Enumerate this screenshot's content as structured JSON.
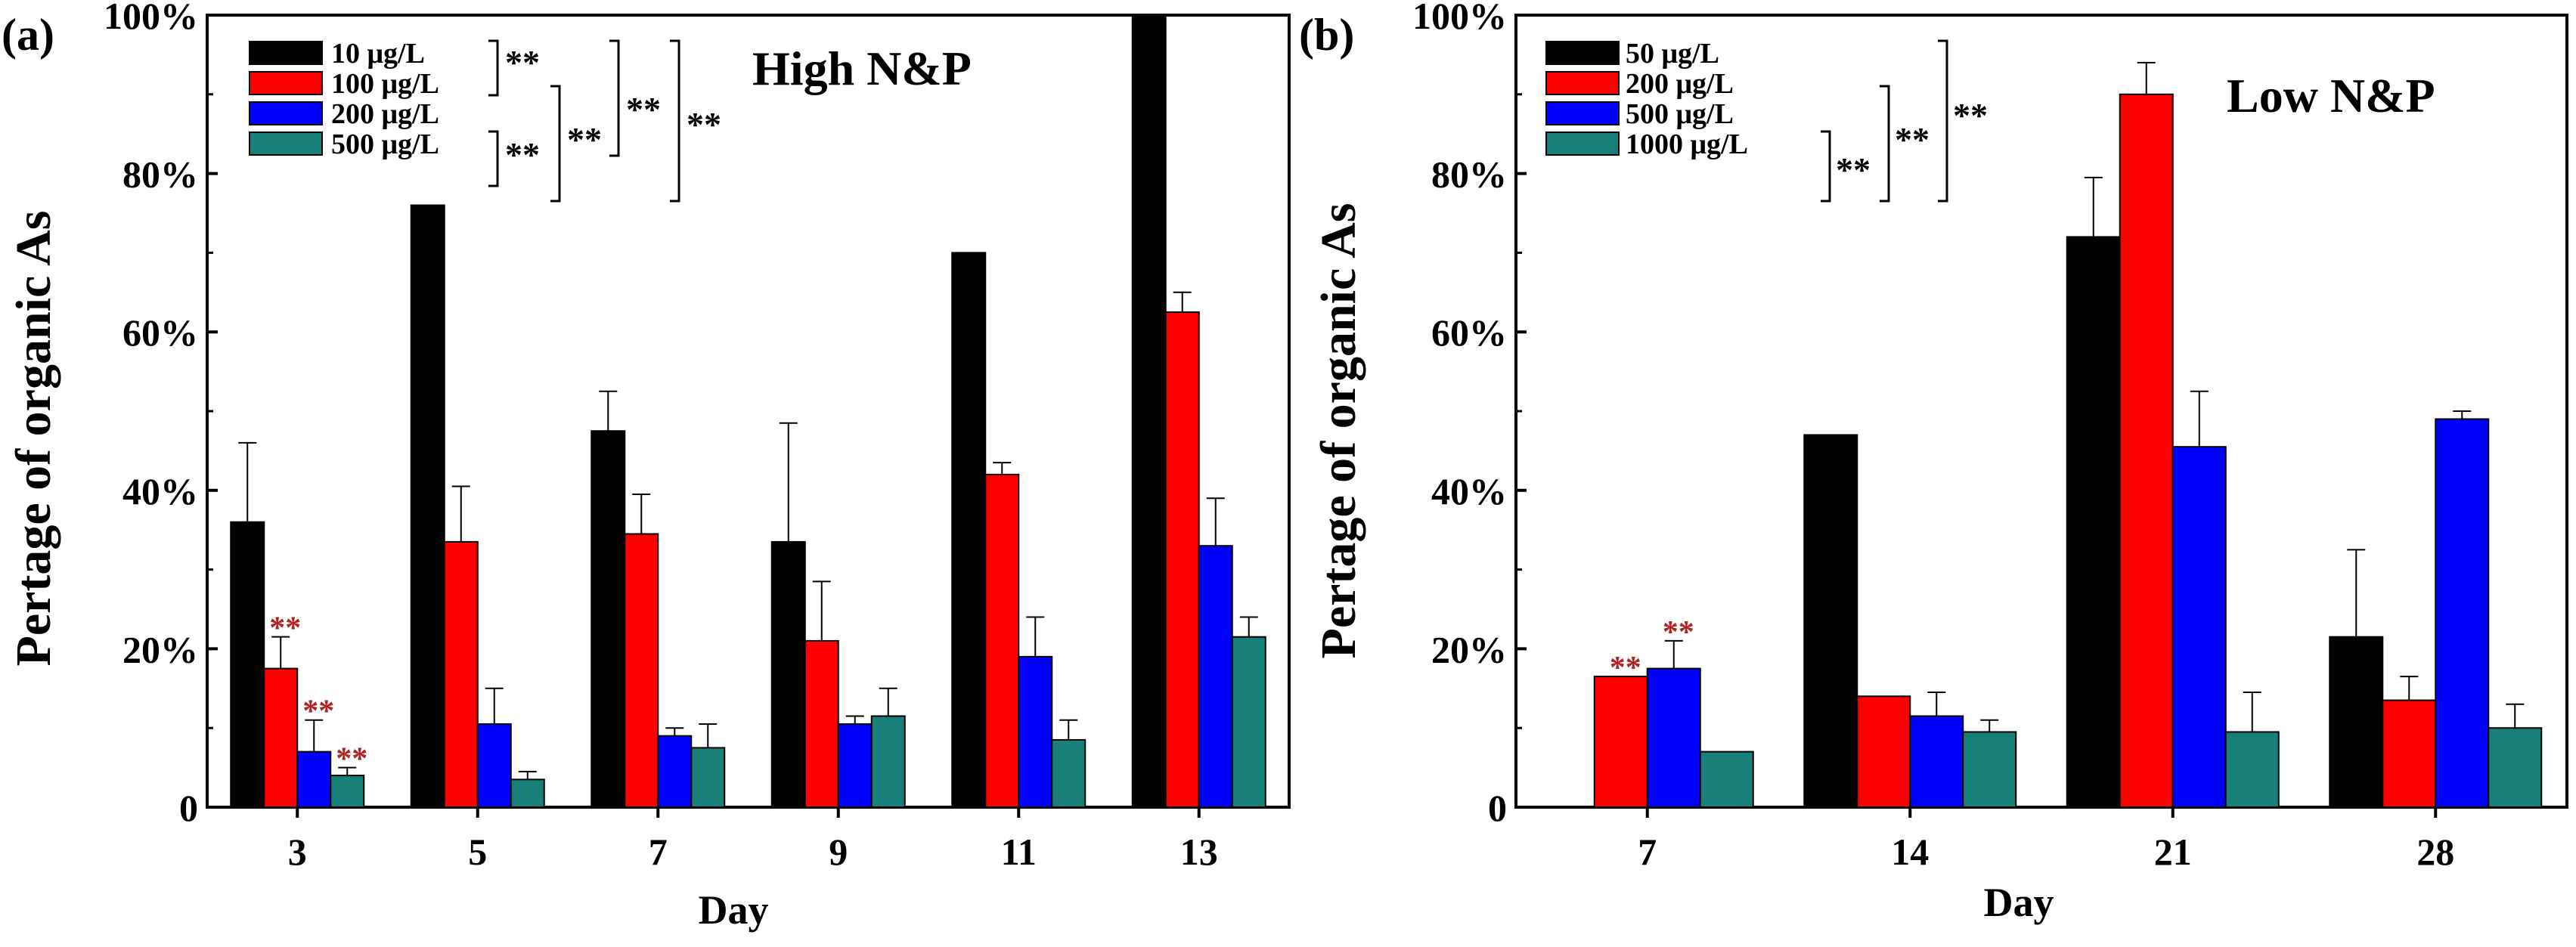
{
  "chart_data": [
    {
      "type": "bar",
      "panel_label": "(a)",
      "title": "High N&P",
      "xlabel": "Day",
      "ylabel": "Pertage of organic As",
      "ylim": [
        0,
        100
      ],
      "yticks": [
        "0",
        "20%",
        "40%",
        "60%",
        "80%",
        "100%"
      ],
      "categories": [
        "3",
        "5",
        "7",
        "9",
        "11",
        "13"
      ],
      "series": [
        {
          "name": "10 μg/L",
          "color": "#000000",
          "values": [
            36,
            76,
            47.5,
            33.5,
            70,
            100
          ],
          "errors": [
            10,
            0,
            5,
            15,
            0,
            0
          ]
        },
        {
          "name": "100 μg/L",
          "color": "#ff0000",
          "values": [
            17.5,
            33.5,
            34.5,
            21,
            42,
            62.5
          ],
          "errors": [
            4,
            7,
            5,
            7.5,
            1.5,
            2.5
          ]
        },
        {
          "name": "200 μg/L",
          "color": "#0000ff",
          "values": [
            7,
            10.5,
            9,
            10.5,
            19,
            33
          ],
          "errors": [
            4,
            4.5,
            1,
            1,
            5,
            6
          ]
        },
        {
          "name": "500 μg/L",
          "color": "#188078",
          "values": [
            4,
            3.5,
            7.5,
            11.5,
            8.5,
            21.5
          ],
          "errors": [
            1,
            1,
            3,
            3.5,
            2.5,
            2.5
          ]
        }
      ],
      "significance_marks": [
        {
          "category": "3",
          "series": "100 μg/L",
          "text": "**"
        },
        {
          "category": "3",
          "series": "200 μg/L",
          "text": "**"
        },
        {
          "category": "3",
          "series": "500 μg/L",
          "text": "**"
        }
      ],
      "legend_brackets": [
        {
          "pair": "10-100",
          "text": "**"
        },
        {
          "pair": "200-500",
          "text": "**"
        },
        {
          "pair": "100-500",
          "text": "**"
        },
        {
          "pair": "10-200",
          "text": "**"
        },
        {
          "pair": "10-500",
          "text": "**"
        }
      ]
    },
    {
      "type": "bar",
      "panel_label": "(b)",
      "title": "Low N&P",
      "xlabel": "Day",
      "ylabel": "Pertage of organic As",
      "ylim": [
        0,
        100
      ],
      "yticks": [
        "0",
        "20%",
        "40%",
        "60%",
        "80%",
        "100%"
      ],
      "categories": [
        "7",
        "14",
        "21",
        "28"
      ],
      "series": [
        {
          "name": "50 μg/L",
          "color": "#000000",
          "values": [
            null,
            47,
            72,
            21.5
          ],
          "errors": [
            0,
            0,
            7.5,
            11
          ]
        },
        {
          "name": "200 μg/L",
          "color": "#ff0000",
          "values": [
            16.5,
            14,
            90,
            13.5
          ],
          "errors": [
            0,
            0,
            4,
            3
          ]
        },
        {
          "name": "500 μg/L",
          "color": "#0000ff",
          "values": [
            17.5,
            11.5,
            45.5,
            49
          ],
          "errors": [
            3.5,
            3,
            7,
            1
          ]
        },
        {
          "name": "1000 μg/L",
          "color": "#188078",
          "values": [
            7,
            9.5,
            9.5,
            10
          ],
          "errors": [
            0,
            1.5,
            5,
            3
          ]
        }
      ],
      "significance_marks": [
        {
          "category": "7",
          "series": "200 μg/L",
          "text": "**"
        },
        {
          "category": "7",
          "series": "500 μg/L",
          "text": "**"
        }
      ],
      "legend_brackets": [
        {
          "pair": "500-1000",
          "text": "**"
        },
        {
          "pair": "200-1000",
          "text": "**"
        },
        {
          "pair": "50-1000",
          "text": "**"
        }
      ]
    }
  ]
}
